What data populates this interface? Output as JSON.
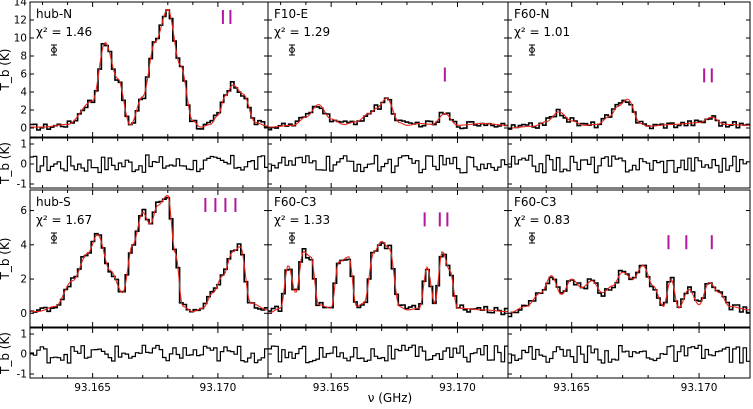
{
  "figure": {
    "xlabel": "ν (GHz)",
    "ylabel_main": "T_b (K)",
    "ylabel_resid": "T_b (K)",
    "xticks": [
      "93.165",
      "93.170"
    ],
    "chi_label": "χ² =",
    "data_color": "#000000",
    "model_color": "#e8261c",
    "marker_color": "#b2179e"
  },
  "chart_data": [
    {
      "type": "line",
      "panel": "hub-N",
      "label": "hub-N",
      "chi2": "1.46",
      "xlim": [
        93.1625,
        93.172
      ],
      "ylim": [
        -1,
        14
      ],
      "yticks": [
        0,
        2,
        4,
        6,
        8,
        10,
        12,
        14
      ],
      "markers": [
        93.1702,
        93.1705
      ],
      "series": [
        {
          "x": [
            93.163,
            93.164,
            93.165,
            93.1655,
            93.166,
            93.1665,
            93.167,
            93.1675,
            93.168,
            93.1685,
            93.169,
            93.1693,
            93.1697,
            93.17,
            93.1703,
            93.1706,
            93.171,
            93.1715,
            93.172
          ],
          "y": [
            0.1,
            0.4,
            3.0,
            9.5,
            5.5,
            0.3,
            3.5,
            9.6,
            13.2,
            7.0,
            0.8,
            0.1,
            0.4,
            1.4,
            3.6,
            4.8,
            3.8,
            0.6,
            0.2
          ]
        }
      ],
      "residual": {
        "ylim": [
          -1.2,
          1.3
        ],
        "yticks": [
          -1,
          0,
          1
        ]
      }
    },
    {
      "type": "line",
      "panel": "F10-E",
      "label": "F10-E",
      "chi2": "1.29",
      "xlim": [
        93.1625,
        93.172
      ],
      "ylim": [
        -1,
        14
      ],
      "yticks": [
        0,
        2,
        4,
        6,
        8,
        10,
        12,
        14
      ],
      "markers": [
        93.1695
      ],
      "series": [
        {
          "x": [
            93.1625,
            93.1635,
            93.164,
            93.1645,
            93.165,
            93.1655,
            93.166,
            93.1665,
            93.1668,
            93.1672,
            93.1677,
            93.168,
            93.1685,
            93.169,
            93.1695,
            93.17,
            93.171,
            93.172
          ],
          "y": [
            0.1,
            0.3,
            1.2,
            2.6,
            1.0,
            0.4,
            0.7,
            1.6,
            2.2,
            3.3,
            0.6,
            0.3,
            0.5,
            0.4,
            1.6,
            0.3,
            0.5,
            0.3
          ]
        }
      ],
      "residual": {
        "ylim": [
          -1.2,
          1.3
        ],
        "yticks": [
          -1,
          0,
          1
        ]
      }
    },
    {
      "type": "line",
      "panel": "F60-N",
      "label": "F60-N",
      "chi2": "1.01",
      "xlim": [
        93.1625,
        93.172
      ],
      "ylim": [
        -1,
        14
      ],
      "yticks": [
        0,
        2,
        4,
        6,
        8,
        10,
        12,
        14
      ],
      "markers": [
        93.1702,
        93.1705
      ],
      "series": [
        {
          "x": [
            93.1625,
            93.1635,
            93.164,
            93.1645,
            93.165,
            93.1655,
            93.166,
            93.1665,
            93.1668,
            93.1672,
            93.1677,
            93.168,
            93.169,
            93.17,
            93.1705,
            93.171,
            93.172
          ],
          "y": [
            0.0,
            0.2,
            0.7,
            1.8,
            0.8,
            0.3,
            0.4,
            1.3,
            2.4,
            3.2,
            0.5,
            0.2,
            0.4,
            0.6,
            1.2,
            0.4,
            0.3
          ]
        }
      ],
      "residual": {
        "ylim": [
          -1.2,
          1.3
        ],
        "yticks": [
          -1,
          0,
          1
        ]
      }
    },
    {
      "type": "line",
      "panel": "hub-S",
      "label": "hub-S",
      "chi2": "1.67",
      "xlim": [
        93.1625,
        93.172
      ],
      "ylim": [
        -0.8,
        7.2
      ],
      "yticks": [
        0,
        2,
        4,
        6
      ],
      "markers": [
        93.1695,
        93.1699,
        93.1703,
        93.1707
      ],
      "series": [
        {
          "x": [
            93.1628,
            93.1635,
            93.1642,
            93.1648,
            93.1652,
            93.1657,
            93.1662,
            93.1666,
            93.167,
            93.1673,
            93.1676,
            93.168,
            93.1683,
            93.1686,
            93.169,
            93.1694,
            93.1698,
            93.1702,
            93.1706,
            93.1709,
            93.1713,
            93.172
          ],
          "y": [
            0.1,
            0.4,
            1.9,
            3.5,
            4.6,
            2.5,
            1.2,
            4.0,
            5.9,
            5.2,
            6.3,
            6.9,
            3.5,
            0.4,
            0.1,
            0.3,
            1.2,
            2.2,
            3.6,
            3.9,
            0.6,
            0.2
          ]
        }
      ],
      "residual": {
        "ylim": [
          -1.2,
          1.3
        ],
        "yticks": [
          -1,
          0,
          1
        ]
      }
    },
    {
      "type": "line",
      "panel": "F60-C3",
      "label": "F60-C3",
      "chi2": "1.33",
      "xlim": [
        93.1625,
        93.172
      ],
      "ylim": [
        -0.8,
        7.2
      ],
      "yticks": [
        0,
        2,
        4,
        6
      ],
      "markers": [
        93.1687,
        93.1693,
        93.1696
      ],
      "series": [
        {
          "x": [
            93.1625,
            93.163,
            93.1633,
            93.1636,
            93.1639,
            93.1642,
            93.1645,
            93.165,
            93.1653,
            93.1657,
            93.166,
            93.1663,
            93.1667,
            93.167,
            93.1673,
            93.1677,
            93.168,
            93.1685,
            93.1688,
            93.1691,
            93.1694,
            93.1697,
            93.17,
            93.171,
            93.172
          ],
          "y": [
            0.0,
            0.3,
            2.8,
            1.2,
            3.6,
            3.3,
            0.5,
            0.3,
            3.0,
            3.3,
            0.4,
            0.6,
            3.6,
            4.2,
            3.8,
            0.4,
            0.2,
            0.3,
            2.7,
            0.6,
            3.6,
            2.5,
            0.3,
            0.2,
            0.1
          ]
        }
      ],
      "residual": {
        "ylim": [
          -1.2,
          1.3
        ],
        "yticks": [
          -1,
          0,
          1
        ]
      }
    },
    {
      "type": "line",
      "panel": "F60-C3",
      "label": "F60-C3",
      "chi2": "0.83",
      "xlim": [
        93.1625,
        93.172
      ],
      "ylim": [
        -0.8,
        7.2
      ],
      "yticks": [
        0,
        2,
        4,
        6
      ],
      "markers": [
        93.1688,
        93.1695,
        93.1705
      ],
      "series": [
        {
          "x": [
            93.1625,
            93.1632,
            93.1638,
            93.1642,
            93.1646,
            93.165,
            93.1654,
            93.1658,
            93.1662,
            93.1666,
            93.167,
            93.1674,
            93.1678,
            93.1682,
            93.1686,
            93.1689,
            93.1692,
            93.1696,
            93.17,
            93.1704,
            93.1708,
            93.1712,
            93.172
          ],
          "y": [
            0.0,
            0.4,
            1.2,
            2.2,
            1.1,
            2.0,
            1.5,
            1.9,
            1.2,
            1.6,
            2.4,
            2.0,
            2.8,
            1.6,
            0.4,
            2.0,
            0.3,
            1.4,
            0.5,
            1.8,
            1.2,
            0.4,
            0.2
          ]
        }
      ],
      "residual": {
        "ylim": [
          -1.2,
          1.3
        ],
        "yticks": [
          -1,
          0,
          1
        ]
      }
    }
  ]
}
